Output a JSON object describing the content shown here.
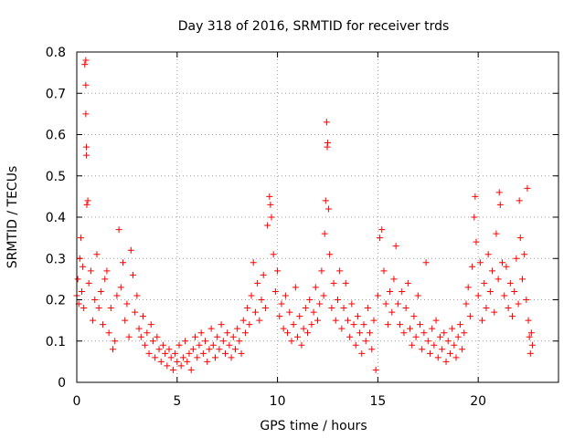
{
  "chart_data": {
    "type": "scatter",
    "title": "Day 318 of 2016, SRMTID for receiver trds",
    "xlabel": "GPS time / hours",
    "ylabel": "SRMTID / TECUs",
    "xlim": [
      0,
      24
    ],
    "ylim": [
      0,
      0.8
    ],
    "xticks": [
      0,
      5,
      10,
      15,
      20
    ],
    "xtick_labels": [
      "0",
      "5",
      "10",
      "15",
      "20"
    ],
    "yticks": [
      0,
      0.1,
      0.2,
      0.3,
      0.4,
      0.5,
      0.6,
      0.7,
      0.8
    ],
    "ytick_labels": [
      "0",
      "0.1",
      "0.2",
      "0.3",
      "0.4",
      "0.5",
      "0.6",
      "0.7",
      "0.8"
    ],
    "grid": true,
    "marker": "plus",
    "color": "#ff0000",
    "series": [
      {
        "name": "SRMTID",
        "points": [
          [
            0.0,
            0.21
          ],
          [
            0.05,
            0.25
          ],
          [
            0.1,
            0.19
          ],
          [
            0.15,
            0.3
          ],
          [
            0.2,
            0.35
          ],
          [
            0.25,
            0.22
          ],
          [
            0.3,
            0.28
          ],
          [
            0.35,
            0.18
          ],
          [
            0.4,
            0.77
          ],
          [
            0.45,
            0.78
          ],
          [
            0.45,
            0.72
          ],
          [
            0.45,
            0.65
          ],
          [
            0.48,
            0.57
          ],
          [
            0.48,
            0.55
          ],
          [
            0.5,
            0.43
          ],
          [
            0.55,
            0.44
          ],
          [
            0.6,
            0.24
          ],
          [
            0.7,
            0.27
          ],
          [
            0.8,
            0.15
          ],
          [
            0.9,
            0.2
          ],
          [
            1.0,
            0.31
          ],
          [
            1.1,
            0.18
          ],
          [
            1.2,
            0.22
          ],
          [
            1.3,
            0.14
          ],
          [
            1.4,
            0.25
          ],
          [
            1.5,
            0.27
          ],
          [
            1.6,
            0.12
          ],
          [
            1.7,
            0.18
          ],
          [
            1.8,
            0.08
          ],
          [
            1.9,
            0.1
          ],
          [
            2.0,
            0.21
          ],
          [
            2.1,
            0.37
          ],
          [
            2.2,
            0.23
          ],
          [
            2.3,
            0.29
          ],
          [
            2.4,
            0.15
          ],
          [
            2.5,
            0.19
          ],
          [
            2.6,
            0.11
          ],
          [
            2.7,
            0.32
          ],
          [
            2.8,
            0.26
          ],
          [
            2.9,
            0.17
          ],
          [
            3.0,
            0.21
          ],
          [
            3.1,
            0.13
          ],
          [
            3.2,
            0.11
          ],
          [
            3.3,
            0.16
          ],
          [
            3.4,
            0.09
          ],
          [
            3.5,
            0.12
          ],
          [
            3.6,
            0.07
          ],
          [
            3.7,
            0.14
          ],
          [
            3.8,
            0.1
          ],
          [
            3.9,
            0.06
          ],
          [
            4.0,
            0.11
          ],
          [
            4.1,
            0.08
          ],
          [
            4.2,
            0.05
          ],
          [
            4.3,
            0.09
          ],
          [
            4.4,
            0.07
          ],
          [
            4.5,
            0.04
          ],
          [
            4.6,
            0.08
          ],
          [
            4.7,
            0.06
          ],
          [
            4.8,
            0.03
          ],
          [
            4.9,
            0.07
          ],
          [
            5.0,
            0.05
          ],
          [
            5.1,
            0.09
          ],
          [
            5.2,
            0.04
          ],
          [
            5.3,
            0.06
          ],
          [
            5.4,
            0.1
          ],
          [
            5.5,
            0.05
          ],
          [
            5.6,
            0.07
          ],
          [
            5.7,
            0.03
          ],
          [
            5.8,
            0.08
          ],
          [
            5.9,
            0.11
          ],
          [
            6.0,
            0.06
          ],
          [
            6.1,
            0.09
          ],
          [
            6.2,
            0.12
          ],
          [
            6.3,
            0.07
          ],
          [
            6.4,
            0.1
          ],
          [
            6.5,
            0.05
          ],
          [
            6.6,
            0.08
          ],
          [
            6.7,
            0.13
          ],
          [
            6.8,
            0.09
          ],
          [
            6.9,
            0.06
          ],
          [
            7.0,
            0.11
          ],
          [
            7.1,
            0.08
          ],
          [
            7.2,
            0.14
          ],
          [
            7.3,
            0.1
          ],
          [
            7.4,
            0.07
          ],
          [
            7.5,
            0.12
          ],
          [
            7.6,
            0.09
          ],
          [
            7.7,
            0.06
          ],
          [
            7.8,
            0.11
          ],
          [
            7.9,
            0.08
          ],
          [
            8.0,
            0.13
          ],
          [
            8.1,
            0.1
          ],
          [
            8.2,
            0.07
          ],
          [
            8.3,
            0.15
          ],
          [
            8.4,
            0.12
          ],
          [
            8.5,
            0.18
          ],
          [
            8.6,
            0.14
          ],
          [
            8.7,
            0.21
          ],
          [
            8.8,
            0.29
          ],
          [
            8.9,
            0.17
          ],
          [
            9.0,
            0.24
          ],
          [
            9.1,
            0.15
          ],
          [
            9.2,
            0.2
          ],
          [
            9.3,
            0.26
          ],
          [
            9.4,
            0.18
          ],
          [
            9.5,
            0.38
          ],
          [
            9.6,
            0.45
          ],
          [
            9.65,
            0.43
          ],
          [
            9.7,
            0.4
          ],
          [
            9.8,
            0.31
          ],
          [
            9.9,
            0.22
          ],
          [
            10.0,
            0.27
          ],
          [
            10.1,
            0.16
          ],
          [
            10.2,
            0.19
          ],
          [
            10.3,
            0.13
          ],
          [
            10.4,
            0.21
          ],
          [
            10.5,
            0.12
          ],
          [
            10.6,
            0.17
          ],
          [
            10.7,
            0.1
          ],
          [
            10.8,
            0.14
          ],
          [
            10.9,
            0.23
          ],
          [
            11.0,
            0.11
          ],
          [
            11.1,
            0.16
          ],
          [
            11.2,
            0.09
          ],
          [
            11.3,
            0.13
          ],
          [
            11.4,
            0.18
          ],
          [
            11.5,
            0.12
          ],
          [
            11.6,
            0.2
          ],
          [
            11.7,
            0.14
          ],
          [
            11.8,
            0.17
          ],
          [
            11.9,
            0.23
          ],
          [
            12.0,
            0.15
          ],
          [
            12.1,
            0.19
          ],
          [
            12.2,
            0.27
          ],
          [
            12.3,
            0.21
          ],
          [
            12.35,
            0.36
          ],
          [
            12.4,
            0.44
          ],
          [
            12.45,
            0.63
          ],
          [
            12.48,
            0.57
          ],
          [
            12.5,
            0.58
          ],
          [
            12.55,
            0.42
          ],
          [
            12.6,
            0.31
          ],
          [
            12.7,
            0.18
          ],
          [
            12.8,
            0.24
          ],
          [
            12.9,
            0.15
          ],
          [
            13.0,
            0.2
          ],
          [
            13.1,
            0.27
          ],
          [
            13.2,
            0.13
          ],
          [
            13.3,
            0.18
          ],
          [
            13.4,
            0.24
          ],
          [
            13.5,
            0.15
          ],
          [
            13.6,
            0.11
          ],
          [
            13.7,
            0.19
          ],
          [
            13.8,
            0.14
          ],
          [
            13.9,
            0.09
          ],
          [
            14.0,
            0.16
          ],
          [
            14.1,
            0.12
          ],
          [
            14.2,
            0.07
          ],
          [
            14.3,
            0.14
          ],
          [
            14.4,
            0.1
          ],
          [
            14.5,
            0.18
          ],
          [
            14.6,
            0.12
          ],
          [
            14.7,
            0.08
          ],
          [
            14.8,
            0.15
          ],
          [
            14.9,
            0.03
          ],
          [
            15.0,
            0.21
          ],
          [
            15.1,
            0.35
          ],
          [
            15.2,
            0.37
          ],
          [
            15.3,
            0.27
          ],
          [
            15.4,
            0.19
          ],
          [
            15.5,
            0.14
          ],
          [
            15.6,
            0.22
          ],
          [
            15.7,
            0.17
          ],
          [
            15.8,
            0.25
          ],
          [
            15.9,
            0.33
          ],
          [
            16.0,
            0.19
          ],
          [
            16.1,
            0.14
          ],
          [
            16.2,
            0.22
          ],
          [
            16.3,
            0.12
          ],
          [
            16.4,
            0.18
          ],
          [
            16.5,
            0.24
          ],
          [
            16.6,
            0.13
          ],
          [
            16.7,
            0.09
          ],
          [
            16.8,
            0.16
          ],
          [
            16.9,
            0.11
          ],
          [
            17.0,
            0.21
          ],
          [
            17.1,
            0.14
          ],
          [
            17.2,
            0.08
          ],
          [
            17.3,
            0.12
          ],
          [
            17.4,
            0.29
          ],
          [
            17.5,
            0.1
          ],
          [
            17.6,
            0.07
          ],
          [
            17.7,
            0.13
          ],
          [
            17.8,
            0.09
          ],
          [
            17.9,
            0.15
          ],
          [
            18.0,
            0.06
          ],
          [
            18.1,
            0.11
          ],
          [
            18.2,
            0.08
          ],
          [
            18.3,
            0.12
          ],
          [
            18.4,
            0.05
          ],
          [
            18.5,
            0.1
          ],
          [
            18.6,
            0.07
          ],
          [
            18.7,
            0.13
          ],
          [
            18.8,
            0.09
          ],
          [
            18.9,
            0.06
          ],
          [
            19.0,
            0.11
          ],
          [
            19.1,
            0.14
          ],
          [
            19.2,
            0.08
          ],
          [
            19.3,
            0.12
          ],
          [
            19.4,
            0.19
          ],
          [
            19.5,
            0.23
          ],
          [
            19.6,
            0.16
          ],
          [
            19.7,
            0.28
          ],
          [
            19.8,
            0.4
          ],
          [
            19.85,
            0.45
          ],
          [
            19.9,
            0.34
          ],
          [
            20.0,
            0.21
          ],
          [
            20.1,
            0.29
          ],
          [
            20.2,
            0.15
          ],
          [
            20.3,
            0.24
          ],
          [
            20.4,
            0.18
          ],
          [
            20.5,
            0.31
          ],
          [
            20.6,
            0.22
          ],
          [
            20.7,
            0.27
          ],
          [
            20.8,
            0.17
          ],
          [
            20.9,
            0.36
          ],
          [
            21.0,
            0.25
          ],
          [
            21.05,
            0.46
          ],
          [
            21.1,
            0.43
          ],
          [
            21.2,
            0.29
          ],
          [
            21.3,
            0.21
          ],
          [
            21.4,
            0.28
          ],
          [
            21.5,
            0.18
          ],
          [
            21.6,
            0.24
          ],
          [
            21.7,
            0.16
          ],
          [
            21.8,
            0.22
          ],
          [
            21.9,
            0.3
          ],
          [
            22.0,
            0.19
          ],
          [
            22.05,
            0.44
          ],
          [
            22.1,
            0.35
          ],
          [
            22.2,
            0.25
          ],
          [
            22.3,
            0.31
          ],
          [
            22.4,
            0.2
          ],
          [
            22.45,
            0.47
          ],
          [
            22.5,
            0.15
          ],
          [
            22.55,
            0.11
          ],
          [
            22.6,
            0.07
          ],
          [
            22.65,
            0.12
          ],
          [
            22.7,
            0.09
          ]
        ]
      }
    ]
  }
}
